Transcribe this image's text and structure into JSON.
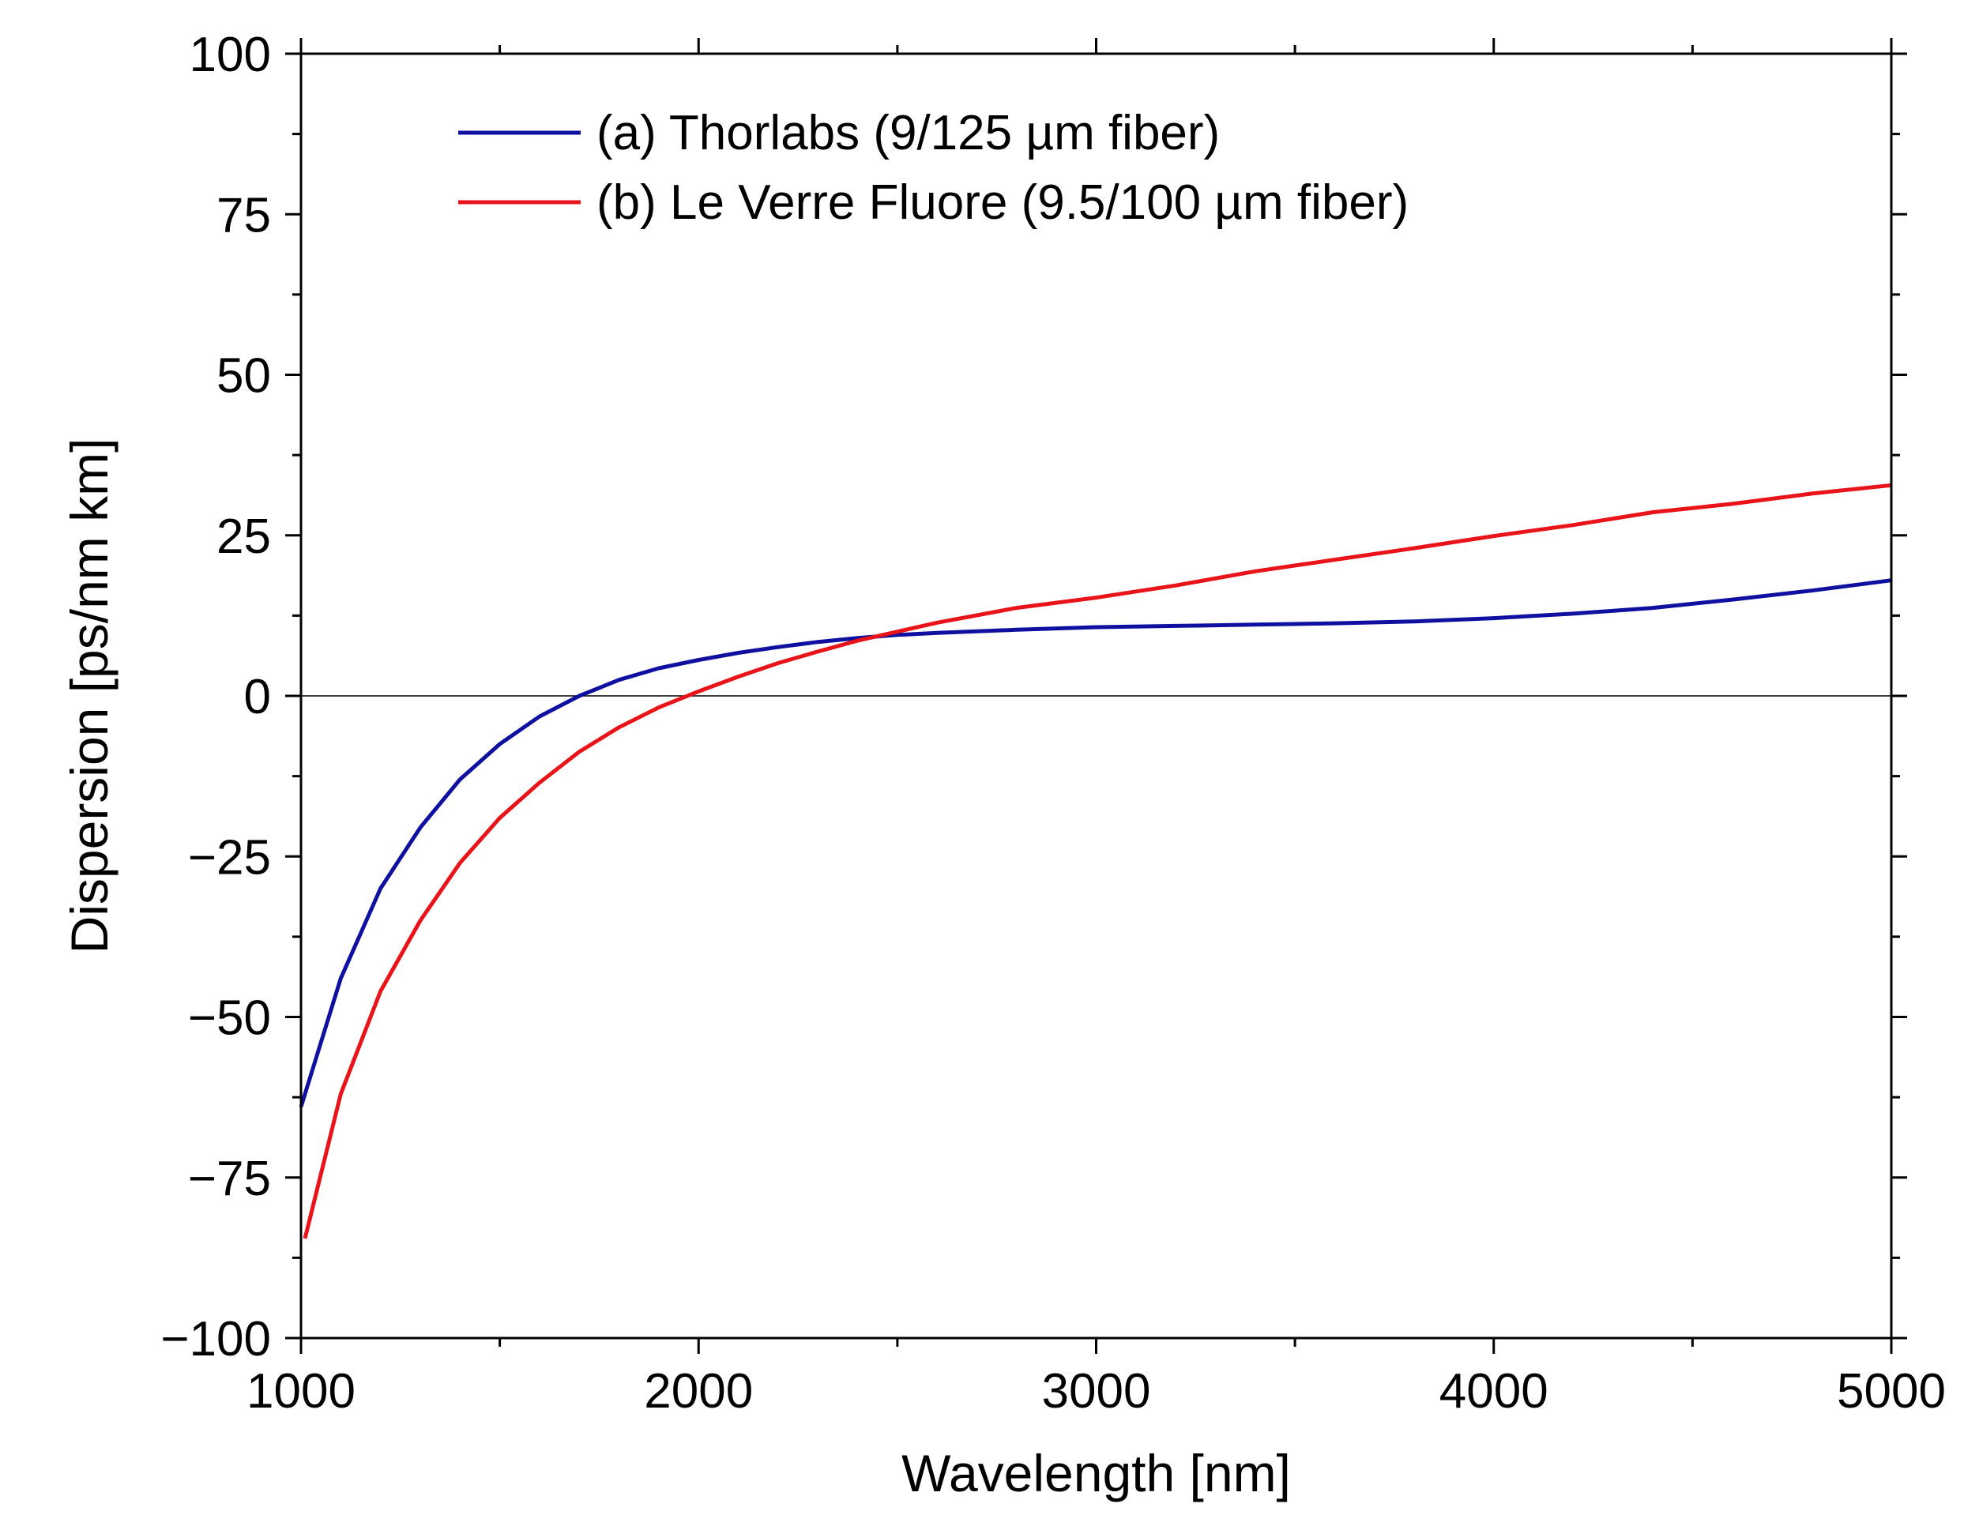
{
  "chart_data": {
    "type": "line",
    "xlabel": "Wavelength [nm]",
    "ylabel": "Dispersion [ps/nm km]",
    "xlim": [
      1000,
      5000
    ],
    "ylim": [
      -100,
      100
    ],
    "x_ticks": [
      1000,
      2000,
      3000,
      4000,
      5000
    ],
    "x_tick_labels": [
      "1000",
      "2000",
      "3000",
      "4000",
      "5000"
    ],
    "y_ticks": [
      100,
      75,
      50,
      25,
      0,
      -25,
      -50,
      -75,
      -100
    ],
    "y_tick_labels": [
      "100",
      "75",
      "50",
      "25",
      "0",
      "−25",
      "−50",
      "−75",
      "−100"
    ],
    "zero_line": true,
    "legend_position": "top-left",
    "series": [
      {
        "name": "(a) Thorlabs (9/125 µm fiber)",
        "color": "#1010a0",
        "x": [
          1000,
          1100,
          1200,
          1300,
          1400,
          1500,
          1600,
          1700,
          1800,
          1900,
          2000,
          2100,
          2200,
          2300,
          2400,
          2500,
          2600,
          2800,
          3000,
          3200,
          3400,
          3600,
          3800,
          4000,
          4200,
          4400,
          4600,
          4800,
          5000
        ],
        "y": [
          -64,
          -44,
          -30,
          -20.5,
          -13,
          -7.5,
          -3.2,
          0,
          2.5,
          4.3,
          5.6,
          6.7,
          7.6,
          8.4,
          9.0,
          9.5,
          9.8,
          10.3,
          10.7,
          10.9,
          11.1,
          11.3,
          11.6,
          12.1,
          12.8,
          13.7,
          15.0,
          16.4,
          18.0
        ]
      },
      {
        "name": "(b) Le Verre Fluore (9.5/100 µm fiber)",
        "color": "#e8141a",
        "x": [
          1010,
          1100,
          1200,
          1300,
          1400,
          1500,
          1600,
          1700,
          1800,
          1900,
          2000,
          2100,
          2200,
          2300,
          2400,
          2500,
          2600,
          2800,
          3000,
          3200,
          3400,
          3600,
          3800,
          4000,
          4200,
          4400,
          4600,
          4800,
          5000
        ],
        "y": [
          -84.5,
          -62,
          -46,
          -35,
          -26,
          -19,
          -13.5,
          -8.7,
          -4.9,
          -1.8,
          0.7,
          3.0,
          5.1,
          6.9,
          8.6,
          10.0,
          11.4,
          13.7,
          15.3,
          17.2,
          19.4,
          21.2,
          23.0,
          24.9,
          26.6,
          28.6,
          29.9,
          31.5,
          32.8
        ]
      }
    ]
  }
}
